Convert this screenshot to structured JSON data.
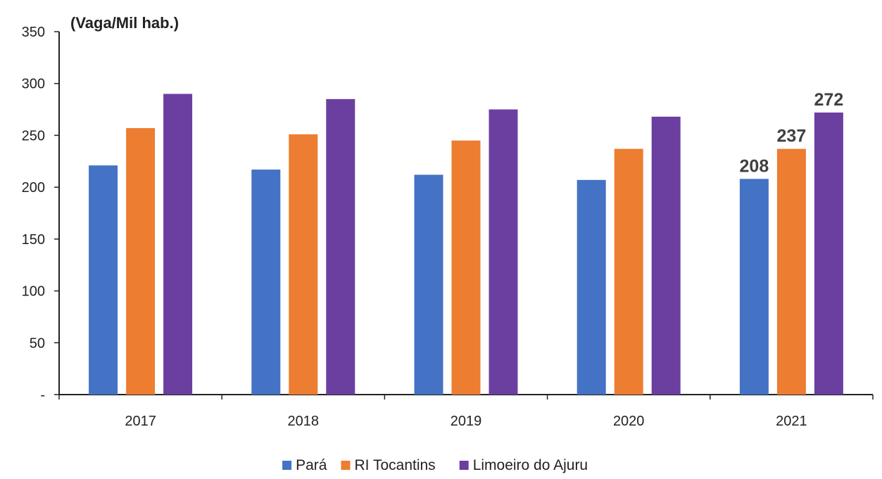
{
  "chart_data": {
    "type": "bar",
    "title": "",
    "unit_label": "(Vaga/Mil hab.)",
    "xlabel": "",
    "ylabel": "",
    "categories": [
      "2017",
      "2018",
      "2019",
      "2020",
      "2021"
    ],
    "ylim": [
      0,
      350
    ],
    "yticks": [
      0,
      50,
      100,
      150,
      200,
      250,
      300,
      350
    ],
    "ytick_labels": [
      "-",
      "50",
      "100",
      "150",
      "200",
      "250",
      "300",
      "350"
    ],
    "grid": false,
    "legend_position": "bottom",
    "series": [
      {
        "name": "Pará",
        "color": "#4472C4",
        "values": [
          221,
          217,
          212,
          207,
          208
        ],
        "data_labels": [
          null,
          null,
          null,
          null,
          "208"
        ]
      },
      {
        "name": "RI Tocantins",
        "color": "#ED7D31",
        "values": [
          257,
          251,
          245,
          237,
          237
        ],
        "data_labels": [
          null,
          null,
          null,
          null,
          "237"
        ]
      },
      {
        "name": "Limoeiro do Ajuru",
        "color": "#6B3FA0",
        "values": [
          290,
          285,
          275,
          268,
          272
        ],
        "data_labels": [
          null,
          null,
          null,
          null,
          "272"
        ]
      }
    ]
  }
}
